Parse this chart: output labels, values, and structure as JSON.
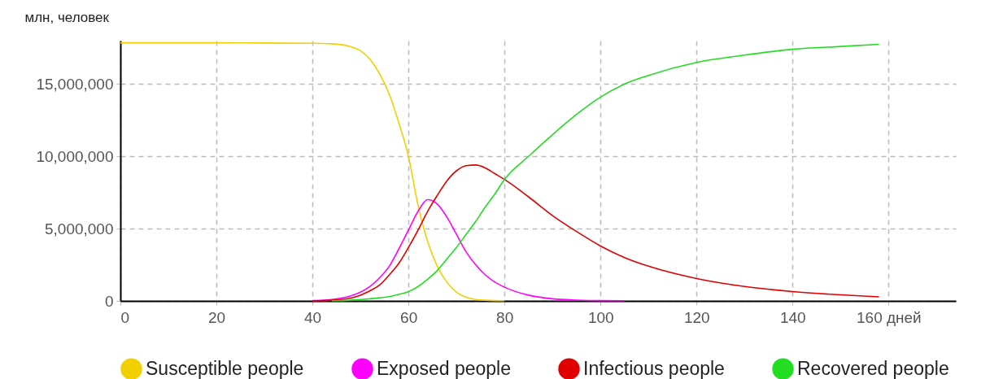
{
  "chart_data": {
    "type": "line",
    "ylabel": "млн, человек",
    "x": [
      0,
      10,
      20,
      30,
      40,
      44,
      48,
      50,
      52,
      54,
      56,
      58,
      60,
      62,
      64,
      66,
      68,
      70,
      72,
      74,
      76,
      78,
      80,
      85,
      90,
      95,
      100,
      105,
      110,
      120,
      130,
      140,
      150,
      158
    ],
    "series": [
      {
        "name": "Susceptible people",
        "color": "#f2d000",
        "values": [
          17850000,
          17850000,
          17850000,
          17840000,
          17820000,
          17780000,
          17580000,
          17300000,
          16700000,
          15700000,
          14300000,
          12300000,
          10000000,
          6600000,
          4100000,
          2400000,
          1300000,
          600000,
          250000,
          100000,
          50000,
          20000,
          10000,
          null,
          null,
          null,
          null,
          null,
          null,
          null,
          null,
          null,
          null,
          null
        ]
      },
      {
        "name": "Exposed people",
        "color": "#ff00ff",
        "values": [
          null,
          null,
          null,
          null,
          20000,
          100000,
          350000,
          600000,
          1000000,
          1600000,
          2400000,
          3600000,
          4900000,
          6200000,
          7000000,
          6700000,
          5800000,
          4600000,
          3400000,
          2500000,
          1800000,
          1300000,
          950000,
          400000,
          150000,
          60000,
          20000,
          10000,
          null,
          null,
          null,
          null,
          null,
          null
        ]
      },
      {
        "name": "Infectious people",
        "color": "#e00000",
        "values": [
          null,
          null,
          null,
          null,
          10000,
          50000,
          200000,
          400000,
          700000,
          1100000,
          1800000,
          2600000,
          3700000,
          4900000,
          6200000,
          7300000,
          8300000,
          9000000,
          9350000,
          9400000,
          9200000,
          8800000,
          8400000,
          7200000,
          5900000,
          4800000,
          3800000,
          3000000,
          2400000,
          1550000,
          1000000,
          650000,
          420000,
          280000
        ]
      },
      {
        "name": "Recovered people",
        "color": "#22dd22",
        "values": [
          null,
          null,
          null,
          null,
          null,
          10000,
          50000,
          100000,
          150000,
          220000,
          300000,
          450000,
          650000,
          1000000,
          1500000,
          2100000,
          2900000,
          3700000,
          4600000,
          5500000,
          6500000,
          7400000,
          8400000,
          10000000,
          11500000,
          12900000,
          14100000,
          15000000,
          15600000,
          16500000,
          17000000,
          17400000,
          17600000,
          17750000
        ]
      }
    ],
    "xlim": [
      0,
      174
    ],
    "xticks": [
      0,
      20,
      40,
      60,
      80,
      100,
      120,
      140,
      {
        "value": 160,
        "label": "160 дней"
      }
    ],
    "ylim": [
      0,
      18000000
    ],
    "yticks": [
      0,
      {
        "value": 5000000,
        "label": "5,000,000"
      },
      {
        "value": 10000000,
        "label": "10,000,000"
      },
      {
        "value": 15000000,
        "label": "15,000,000"
      }
    ],
    "grid": true,
    "legend": "bottom",
    "marker": "none",
    "line_style": "solid"
  }
}
